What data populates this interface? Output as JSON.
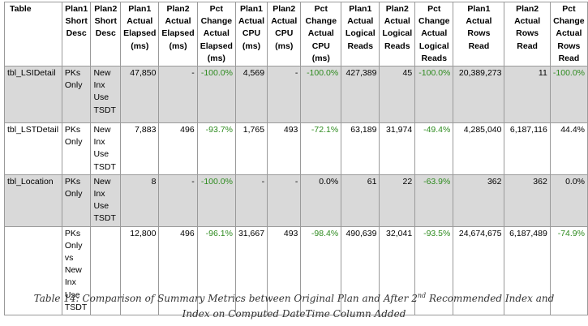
{
  "headers": [
    "Table",
    "Plan1 Short Desc",
    "Plan2 Short Desc",
    "Plan1 Actual Elapsed (ms)",
    "Plan2 Actual Elapsed (ms)",
    "Pct Change Actual Elapsed (ms)",
    "Plan1 Actual CPU (ms)",
    "Plan2 Actual CPU (ms)",
    "Pct Change Actual CPU (ms)",
    "Plan1 Actual Logical Reads",
    "Plan2 Actual Logical Reads",
    "Pct Change Actual Logical Reads",
    "Plan1 Actual Rows Read",
    "Plan2 Actual Rows Read",
    "Pct Change Actual Rows Read"
  ],
  "rows": [
    {
      "table": "tbl_LSIDetail",
      "plan1_desc": "PKs Only",
      "plan2_desc": "New Inx Use TSDT",
      "p1_elapsed": "47,850",
      "p2_elapsed": "-",
      "pct_elapsed": "-100.0%",
      "p1_cpu": "4,569",
      "p2_cpu": "-",
      "pct_cpu": "-100.0%",
      "p1_reads": "427,389",
      "p2_reads": "45",
      "pct_reads": "-100.0%",
      "p1_rows": "20,389,273",
      "p2_rows": "11",
      "pct_rows": "-100.0%"
    },
    {
      "table": "tbl_LSTDetail",
      "plan1_desc": "PKs Only",
      "plan2_desc": "New Inx Use TSDT",
      "p1_elapsed": "7,883",
      "p2_elapsed": "496",
      "pct_elapsed": "-93.7%",
      "p1_cpu": "1,765",
      "p2_cpu": "493",
      "pct_cpu": "-72.1%",
      "p1_reads": "63,189",
      "p2_reads": "31,974",
      "pct_reads": "-49.4%",
      "p1_rows": "4,285,040",
      "p2_rows": "6,187,116",
      "pct_rows": "44.4%"
    },
    {
      "table": "tbl_Location",
      "plan1_desc": "PKs Only",
      "plan2_desc": "New Inx Use TSDT",
      "p1_elapsed": "8",
      "p2_elapsed": "-",
      "pct_elapsed": "-100.0%",
      "p1_cpu": "-",
      "p2_cpu": "-",
      "pct_cpu": "0.0%",
      "p1_reads": "61",
      "p2_reads": "22",
      "pct_reads": "-63.9%",
      "p1_rows": "362",
      "p2_rows": "362",
      "pct_rows": "0.0%"
    },
    {
      "table": "",
      "plan1_desc": "PKs Only vs New Inx Use TSDT",
      "plan2_desc": "",
      "p1_elapsed": "12,800",
      "p2_elapsed": "496",
      "pct_elapsed": "-96.1%",
      "p1_cpu": "31,667",
      "p2_cpu": "493",
      "pct_cpu": "-98.4%",
      "p1_reads": "490,639",
      "p2_reads": "32,041",
      "pct_reads": "-93.5%",
      "p1_rows": "24,674,675",
      "p2_rows": "6,187,489",
      "pct_rows": "-74.9%"
    }
  ],
  "caption": {
    "before": "Table 14: Comparison of Summary Metrics between Original Plan and After 2",
    "sup": "nd",
    "after": " Recommended Index and",
    "line2": "Index on Computed DateTime Column Added"
  },
  "colors": {
    "negative_pct": "#2e8b1f",
    "shaded_row": "#d9d9d9",
    "border": "#9a9a9a"
  }
}
